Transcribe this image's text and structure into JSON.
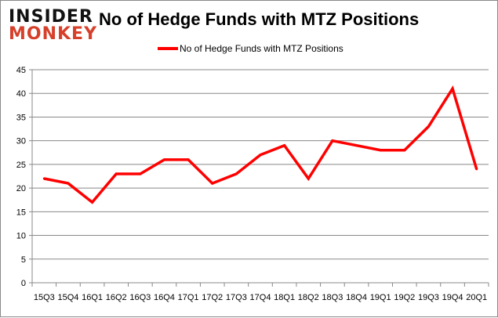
{
  "logo": {
    "line1": "INSIDER",
    "line2": "MONKEY"
  },
  "chart_data": {
    "type": "line",
    "title": "No of Hedge Funds with MTZ Positions",
    "xlabel": "",
    "ylabel": "",
    "categories": [
      "15Q3",
      "15Q4",
      "16Q1",
      "16Q2",
      "16Q3",
      "16Q4",
      "17Q1",
      "17Q2",
      "17Q3",
      "17Q4",
      "18Q1",
      "18Q2",
      "18Q3",
      "18Q4",
      "19Q1",
      "19Q2",
      "19Q3",
      "19Q4",
      "20Q1"
    ],
    "series": [
      {
        "name": "No of Hedge Funds with MTZ Positions",
        "color": "#ff0000",
        "values": [
          22,
          21,
          17,
          23,
          23,
          26,
          26,
          21,
          23,
          27,
          29,
          22,
          30,
          29,
          28,
          28,
          33,
          41,
          24
        ]
      }
    ],
    "ylim": [
      0,
      45
    ],
    "yticks": [
      0,
      5,
      10,
      15,
      20,
      25,
      30,
      35,
      40,
      45
    ],
    "grid": true,
    "legend": "top-center"
  }
}
